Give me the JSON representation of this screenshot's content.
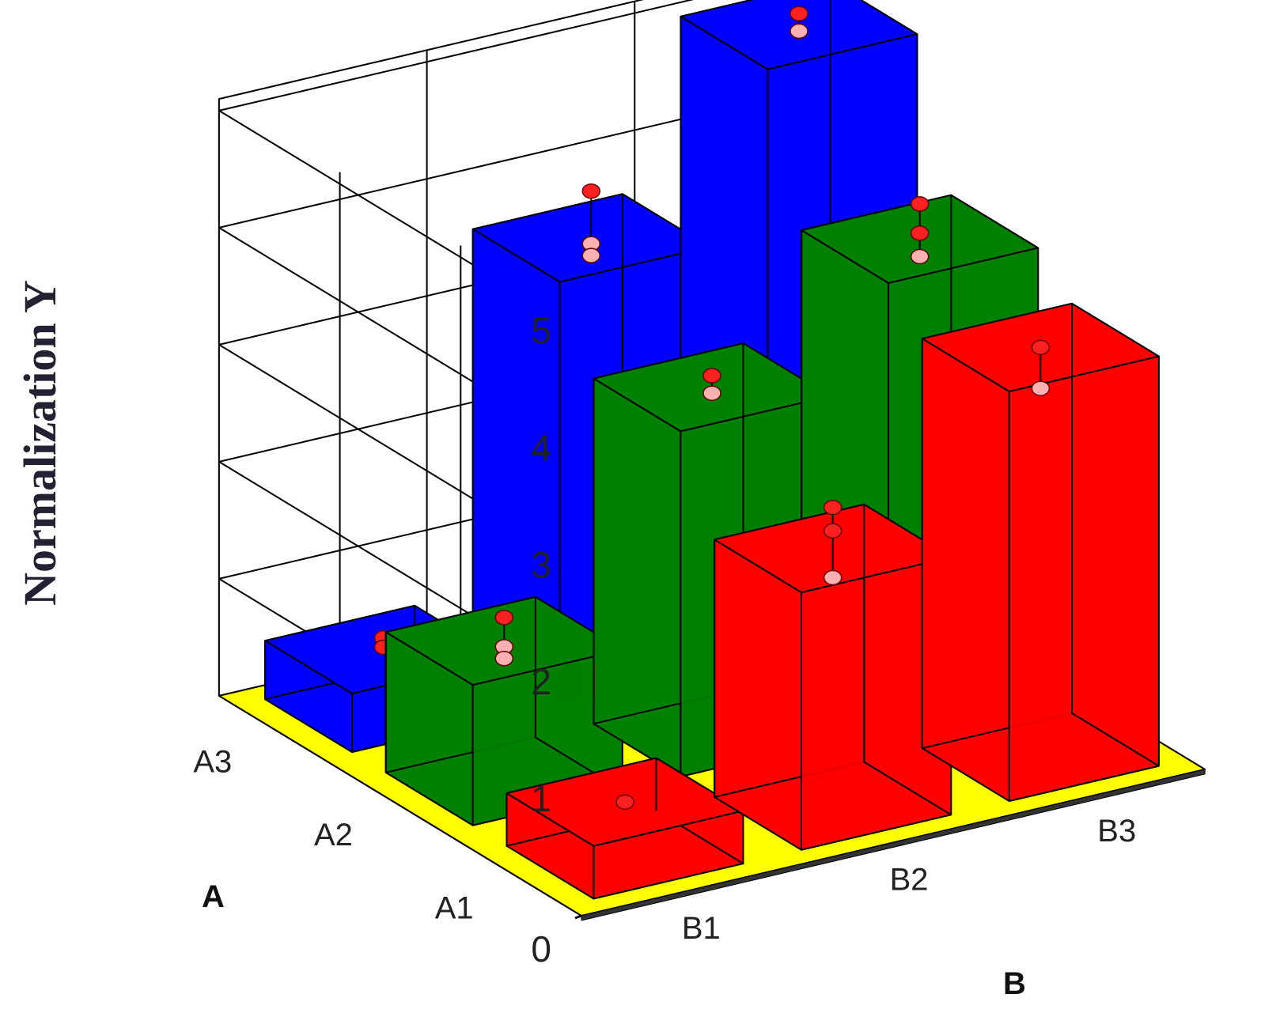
{
  "chart_data": {
    "type": "bar3d",
    "title": "",
    "ylabel": "Normalization Y",
    "xlabel": "A",
    "zlabel": "B",
    "ylim": [
      0,
      5
    ],
    "yticks": [
      "0",
      "1",
      "2",
      "3",
      "4",
      "5"
    ],
    "A_categories": [
      "A3",
      "A2",
      "A1"
    ],
    "B_categories": [
      "B1",
      "B2",
      "B3"
    ],
    "colors": {
      "A3": "#0000ff",
      "A2": "#008000",
      "A1": "#ff0000",
      "floor": "#ffff00"
    },
    "grid": true,
    "bars": [
      {
        "a": "A3",
        "b": "B1",
        "value": 0.5,
        "points": [
          0.6,
          0.52
        ]
      },
      {
        "a": "A3",
        "b": "B2",
        "value": 3.6,
        "points": [
          4.0,
          3.55,
          3.45
        ]
      },
      {
        "a": "A3",
        "b": "B3",
        "value": 5.0,
        "points": [
          5.1,
          4.95
        ]
      },
      {
        "a": "A2",
        "b": "B1",
        "value": 1.2,
        "points": [
          1.4,
          1.15,
          1.05
        ]
      },
      {
        "a": "A2",
        "b": "B2",
        "value": 2.95,
        "points": [
          3.05,
          2.9
        ]
      },
      {
        "a": "A2",
        "b": "B3",
        "value": 3.8,
        "points": [
          4.1,
          3.85,
          3.65
        ]
      },
      {
        "a": "A1",
        "b": "B1",
        "value": 0.45,
        "points": [
          0.45
        ]
      },
      {
        "a": "A1",
        "b": "B2",
        "value": 2.2,
        "points": [
          2.55,
          2.35,
          1.95
        ]
      },
      {
        "a": "A1",
        "b": "B3",
        "value": 3.5,
        "points": [
          3.5,
          3.15
        ]
      }
    ]
  }
}
